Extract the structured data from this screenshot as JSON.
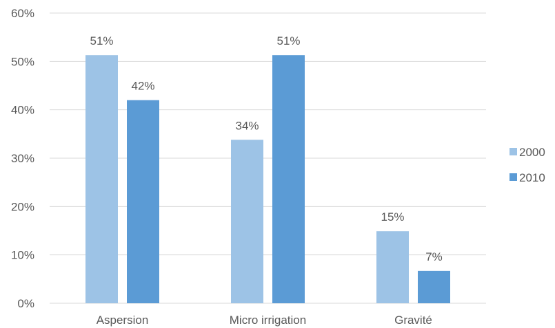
{
  "chart_data": {
    "type": "bar",
    "title": "",
    "xlabel": "",
    "ylabel": "",
    "categories": [
      "Aspersion",
      "Micro irrigation",
      "Gravité"
    ],
    "series": [
      {
        "name": "2000",
        "values": [
          51.3,
          33.8,
          14.9
        ],
        "labels": [
          "51%",
          "34%",
          "15%"
        ],
        "color": "#9DC3E6"
      },
      {
        "name": "2010",
        "values": [
          42.0,
          51.3,
          6.7
        ],
        "labels": [
          "42%",
          "51%",
          "7%"
        ],
        "color": "#5B9BD5"
      }
    ],
    "ylim": [
      0,
      60
    ],
    "yticks": [
      0,
      10,
      20,
      30,
      40,
      50,
      60
    ],
    "ytick_labels": [
      "0%",
      "10%",
      "20%",
      "30%",
      "40%",
      "50%",
      "60%"
    ],
    "grid": true,
    "legend_position": "right",
    "gridline_color": "#D9D9D9"
  }
}
